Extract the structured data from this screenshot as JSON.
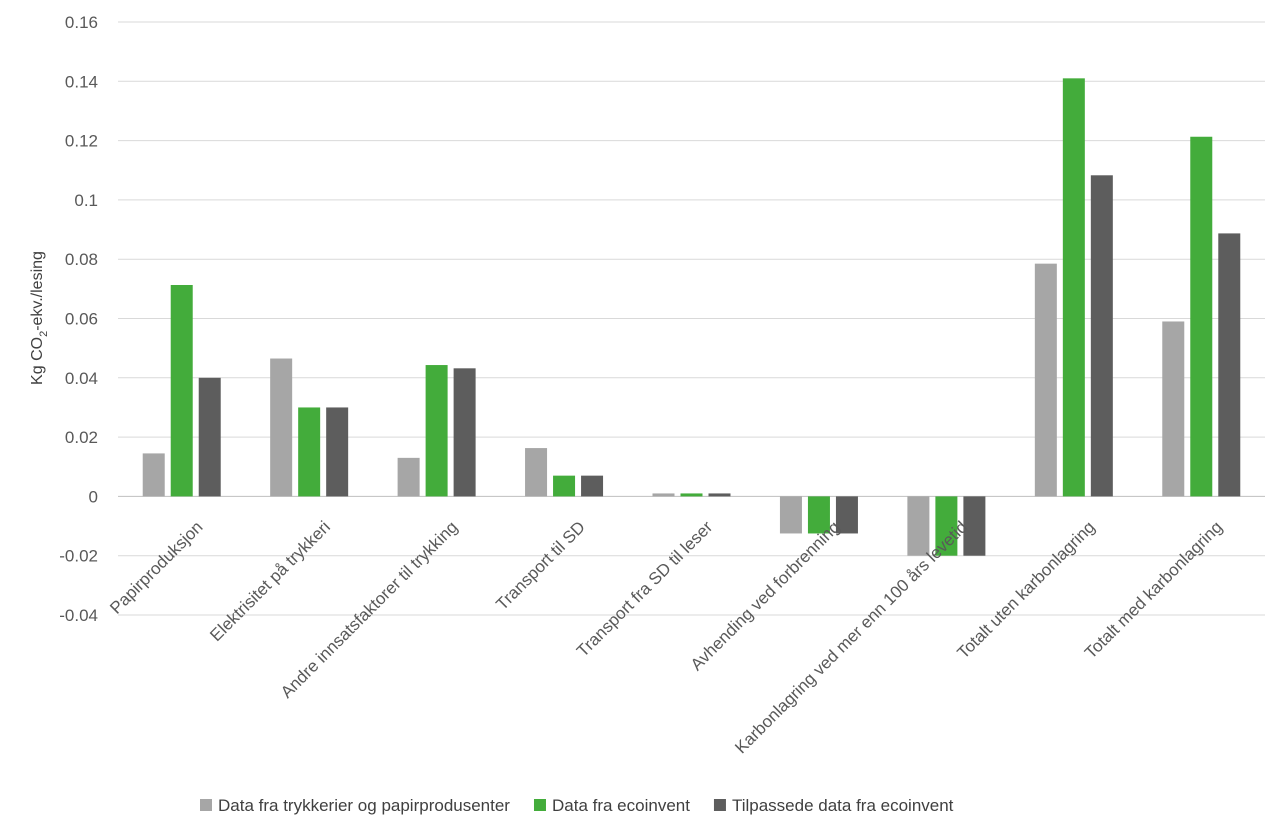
{
  "chart_data": {
    "type": "bar",
    "title": "",
    "xlabel": "",
    "ylabel": "Kg CO",
    "ylabel_subscript": "2",
    "ylabel_suffix": "-ekv./lesing",
    "ylim": [
      -0.04,
      0.16
    ],
    "y_step": 0.02,
    "yticks": [
      "-0.04",
      "-0.02",
      "0",
      "0.02",
      "0.04",
      "0.06",
      "0.08",
      "0.1",
      "0.12",
      "0.14",
      "0.16"
    ],
    "grid": true,
    "legend_position": "bottom",
    "categories": [
      "Papirproduksjon",
      "Elektrisitet på trykkeri",
      "Andre innsatsfaktorer til trykking",
      "Transport til SD",
      "Transport fra SD til leser",
      "Avhending ved forbrenning",
      "Karbonlagring ved mer enn 100 års levetid",
      "Totalt uten karbonlagring",
      "Totalt med karbonlagring"
    ],
    "series": [
      {
        "name": "Data fra trykkerier og papirprodusenter",
        "color": "#a6a6a6",
        "values": [
          0.0145,
          0.0465,
          0.013,
          0.0163,
          0.001,
          -0.0125,
          -0.02,
          0.0785,
          0.059
        ]
      },
      {
        "name": "Data fra ecoinvent",
        "color": "#43ac3b",
        "values": [
          0.0713,
          0.03,
          0.0443,
          0.007,
          0.001,
          -0.0125,
          -0.02,
          0.141,
          0.1213
        ]
      },
      {
        "name": "Tilpassede data fra ecoinvent",
        "color": "#5d5d5d",
        "values": [
          0.04,
          0.03,
          0.0432,
          0.007,
          0.001,
          -0.0125,
          -0.02,
          0.1083,
          0.0887
        ]
      }
    ]
  }
}
